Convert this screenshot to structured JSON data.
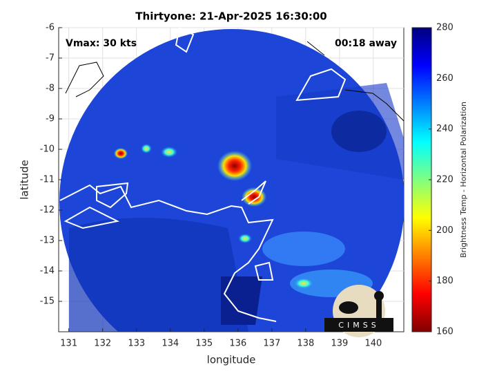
{
  "chart_data": {
    "type": "image",
    "title": "Thirtyone: 21-Apr-2025 16:30:00",
    "xlabel": "longitude",
    "ylabel": "latitude",
    "xlim": [
      130.7,
      140.9
    ],
    "ylim": [
      -16,
      -6
    ],
    "xticks": [
      131,
      132,
      133,
      134,
      135,
      136,
      137,
      138,
      139,
      140
    ],
    "yticks": [
      -6,
      -7,
      -8,
      -9,
      -10,
      -11,
      -12,
      -13,
      -14,
      -15
    ],
    "grid": true,
    "annotations": [
      "Vmax: 30 kts",
      "00:18 away"
    ],
    "logo": "CIMSS",
    "colorbar": {
      "label": "Brightness Temp - Horizontal Polarization",
      "colormap": "jet",
      "lim": [
        160,
        280
      ],
      "ticks": [
        160,
        180,
        200,
        220,
        240,
        260,
        280
      ]
    }
  }
}
